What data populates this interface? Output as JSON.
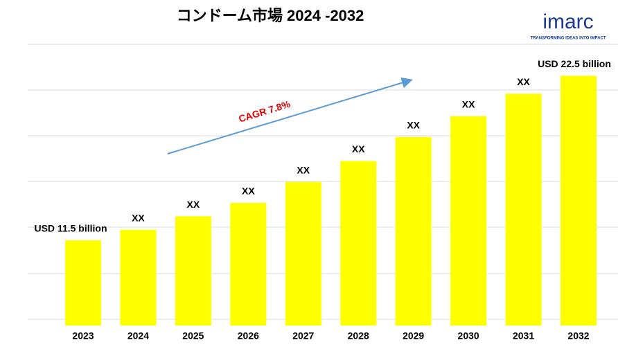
{
  "chart_data": {
    "type": "bar",
    "title": "コンドーム市場 2024 -2032",
    "categories": [
      "2023",
      "2024",
      "2025",
      "2026",
      "2027",
      "2028",
      "2029",
      "2030",
      "2031",
      "2032"
    ],
    "values": [
      11.5,
      12.2,
      13.1,
      14.0,
      15.4,
      16.8,
      18.4,
      19.8,
      21.3,
      22.5
    ],
    "value_labels": [
      "USD 11.5 billion",
      "XX",
      "XX",
      "XX",
      "XX",
      "XX",
      "XX",
      "XX",
      "XX",
      "USD 22.5 billion"
    ],
    "color": "#ffff00",
    "ylim": [
      5.8,
      24.6
    ],
    "annotation": "CAGR 7.8%"
  },
  "logo": {
    "name": "imarc",
    "tagline": "TRANSFORMING IDEAS INTO IMPACT"
  }
}
